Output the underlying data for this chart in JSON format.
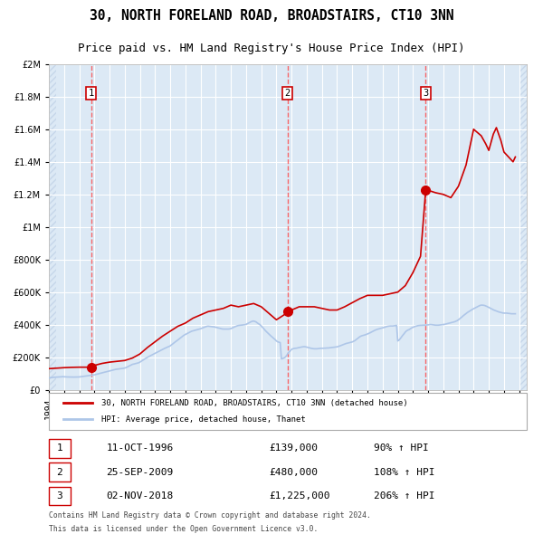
{
  "title1": "30, NORTH FORELAND ROAD, BROADSTAIRS, CT10 3NN",
  "title2": "Price paid vs. HM Land Registry's House Price Index (HPI)",
  "legend_line1": "30, NORTH FORELAND ROAD, BROADSTAIRS, CT10 3NN (detached house)",
  "legend_line2": "HPI: Average price, detached house, Thanet",
  "footer1": "Contains HM Land Registry data © Crown copyright and database right 2024.",
  "footer2": "This data is licensed under the Open Government Licence v3.0.",
  "transactions": [
    {
      "num": 1,
      "date": "11-OCT-1996",
      "year": 1996.78,
      "price": 139000,
      "hpi_pct": "90% ↑ HPI"
    },
    {
      "num": 2,
      "date": "25-SEP-2009",
      "year": 2009.73,
      "price": 480000,
      "hpi_pct": "108% ↑ HPI"
    },
    {
      "num": 3,
      "date": "02-NOV-2018",
      "year": 2018.84,
      "price": 1225000,
      "hpi_pct": "206% ↑ HPI"
    }
  ],
  "hpi_color": "#aec6e8",
  "price_color": "#cc0000",
  "dashed_color": "#ff4444",
  "bg_color": "#dce9f5",
  "plot_bg": "#dce9f5",
  "grid_color": "#ffffff",
  "hatch_color": "#c8d8ea",
  "ylim": [
    0,
    2000000
  ],
  "xlim_start": 1994.0,
  "xlim_end": 2025.5,
  "hpi_data": {
    "years": [
      1994.0,
      1994.08,
      1994.17,
      1994.25,
      1994.33,
      1994.42,
      1994.5,
      1994.58,
      1994.67,
      1994.75,
      1994.83,
      1994.92,
      1995.0,
      1995.08,
      1995.17,
      1995.25,
      1995.33,
      1995.42,
      1995.5,
      1995.58,
      1995.67,
      1995.75,
      1995.83,
      1995.92,
      1996.0,
      1996.08,
      1996.17,
      1996.25,
      1996.33,
      1996.42,
      1996.5,
      1996.58,
      1996.67,
      1996.75,
      1996.83,
      1996.92,
      1997.0,
      1997.08,
      1997.17,
      1997.25,
      1997.33,
      1997.42,
      1997.5,
      1997.58,
      1997.67,
      1997.75,
      1997.83,
      1997.92,
      1998.0,
      1998.08,
      1998.17,
      1998.25,
      1998.33,
      1998.42,
      1998.5,
      1998.58,
      1998.67,
      1998.75,
      1998.83,
      1998.92,
      1999.0,
      1999.08,
      1999.17,
      1999.25,
      1999.33,
      1999.42,
      1999.5,
      1999.58,
      1999.67,
      1999.75,
      1999.83,
      1999.92,
      2000.0,
      2000.08,
      2000.17,
      2000.25,
      2000.33,
      2000.42,
      2000.5,
      2000.58,
      2000.67,
      2000.75,
      2000.83,
      2000.92,
      2001.0,
      2001.08,
      2001.17,
      2001.25,
      2001.33,
      2001.42,
      2001.5,
      2001.58,
      2001.67,
      2001.75,
      2001.83,
      2001.92,
      2002.0,
      2002.08,
      2002.17,
      2002.25,
      2002.33,
      2002.42,
      2002.5,
      2002.58,
      2002.67,
      2002.75,
      2002.83,
      2002.92,
      2003.0,
      2003.08,
      2003.17,
      2003.25,
      2003.33,
      2003.42,
      2003.5,
      2003.58,
      2003.67,
      2003.75,
      2003.83,
      2003.92,
      2004.0,
      2004.08,
      2004.17,
      2004.25,
      2004.33,
      2004.42,
      2004.5,
      2004.58,
      2004.67,
      2004.75,
      2004.83,
      2004.92,
      2005.0,
      2005.08,
      2005.17,
      2005.25,
      2005.33,
      2005.42,
      2005.5,
      2005.58,
      2005.67,
      2005.75,
      2005.83,
      2005.92,
      2006.0,
      2006.08,
      2006.17,
      2006.25,
      2006.33,
      2006.42,
      2006.5,
      2006.58,
      2006.67,
      2006.75,
      2006.83,
      2006.92,
      2007.0,
      2007.08,
      2007.17,
      2007.25,
      2007.33,
      2007.42,
      2007.5,
      2007.58,
      2007.67,
      2007.75,
      2007.83,
      2007.92,
      2008.0,
      2008.08,
      2008.17,
      2008.25,
      2008.33,
      2008.42,
      2008.5,
      2008.58,
      2008.67,
      2008.75,
      2008.83,
      2008.92,
      2009.0,
      2009.08,
      2009.17,
      2009.25,
      2009.33,
      2009.42,
      2009.5,
      2009.58,
      2009.67,
      2009.75,
      2009.83,
      2009.92,
      2010.0,
      2010.08,
      2010.17,
      2010.25,
      2010.33,
      2010.42,
      2010.5,
      2010.58,
      2010.67,
      2010.75,
      2010.83,
      2010.92,
      2011.0,
      2011.08,
      2011.17,
      2011.25,
      2011.33,
      2011.42,
      2011.5,
      2011.58,
      2011.67,
      2011.75,
      2011.83,
      2011.92,
      2012.0,
      2012.08,
      2012.17,
      2012.25,
      2012.33,
      2012.42,
      2012.5,
      2012.58,
      2012.67,
      2012.75,
      2012.83,
      2012.92,
      2013.0,
      2013.08,
      2013.17,
      2013.25,
      2013.33,
      2013.42,
      2013.5,
      2013.58,
      2013.67,
      2013.75,
      2013.83,
      2013.92,
      2014.0,
      2014.08,
      2014.17,
      2014.25,
      2014.33,
      2014.42,
      2014.5,
      2014.58,
      2014.67,
      2014.75,
      2014.83,
      2014.92,
      2015.0,
      2015.08,
      2015.17,
      2015.25,
      2015.33,
      2015.42,
      2015.5,
      2015.58,
      2015.67,
      2015.75,
      2015.83,
      2015.92,
      2016.0,
      2016.08,
      2016.17,
      2016.25,
      2016.33,
      2016.42,
      2016.5,
      2016.58,
      2016.67,
      2016.75,
      2016.83,
      2016.92,
      2017.0,
      2017.08,
      2017.17,
      2017.25,
      2017.33,
      2017.42,
      2017.5,
      2017.58,
      2017.67,
      2017.75,
      2017.83,
      2017.92,
      2018.0,
      2018.08,
      2018.17,
      2018.25,
      2018.33,
      2018.42,
      2018.5,
      2018.58,
      2018.67,
      2018.75,
      2018.83,
      2018.92,
      2019.0,
      2019.08,
      2019.17,
      2019.25,
      2019.33,
      2019.42,
      2019.5,
      2019.58,
      2019.67,
      2019.75,
      2019.83,
      2019.92,
      2020.0,
      2020.08,
      2020.17,
      2020.25,
      2020.33,
      2020.42,
      2020.5,
      2020.58,
      2020.67,
      2020.75,
      2020.83,
      2020.92,
      2021.0,
      2021.08,
      2021.17,
      2021.25,
      2021.33,
      2021.42,
      2021.5,
      2021.58,
      2021.67,
      2021.75,
      2021.83,
      2021.92,
      2022.0,
      2022.08,
      2022.17,
      2022.25,
      2022.33,
      2022.42,
      2022.5,
      2022.58,
      2022.67,
      2022.75,
      2022.83,
      2022.92,
      2023.0,
      2023.08,
      2023.17,
      2023.25,
      2023.33,
      2023.42,
      2023.5,
      2023.58,
      2023.67,
      2023.75,
      2023.83,
      2023.92,
      2024.0,
      2024.08,
      2024.17,
      2024.25,
      2024.33,
      2024.42,
      2024.5,
      2024.58,
      2024.67,
      2024.75
    ],
    "values": [
      73000,
      74000,
      75000,
      76000,
      77000,
      77500,
      78000,
      78500,
      79000,
      79500,
      80000,
      80500,
      80000,
      79500,
      79000,
      78800,
      78600,
      78400,
      78200,
      78000,
      78200,
      78400,
      78600,
      78800,
      79000,
      80000,
      81000,
      82000,
      83000,
      84000,
      85000,
      86000,
      87000,
      88000,
      89000,
      90000,
      92000,
      94000,
      96000,
      98000,
      100000,
      102000,
      104000,
      106000,
      108000,
      110000,
      112000,
      114000,
      116000,
      118000,
      120000,
      122000,
      124000,
      126000,
      127000,
      128000,
      129000,
      130000,
      131000,
      132000,
      134000,
      136000,
      140000,
      144000,
      148000,
      152000,
      156000,
      158000,
      160000,
      162000,
      164000,
      166000,
      170000,
      175000,
      180000,
      185000,
      190000,
      195000,
      200000,
      204000,
      208000,
      212000,
      216000,
      220000,
      224000,
      228000,
      232000,
      236000,
      240000,
      244000,
      248000,
      252000,
      256000,
      260000,
      263000,
      266000,
      270000,
      276000,
      282000,
      288000,
      294000,
      300000,
      306000,
      312000,
      318000,
      324000,
      330000,
      336000,
      340000,
      344000,
      348000,
      352000,
      356000,
      360000,
      362000,
      364000,
      366000,
      368000,
      370000,
      372000,
      375000,
      378000,
      381000,
      384000,
      387000,
      390000,
      391000,
      390000,
      389000,
      388000,
      387000,
      386000,
      384000,
      382000,
      380000,
      378000,
      376000,
      374000,
      373000,
      373000,
      373000,
      373000,
      373000,
      374000,
      376000,
      379000,
      383000,
      387000,
      390000,
      393000,
      395000,
      396000,
      397000,
      398000,
      399000,
      400000,
      402000,
      406000,
      410000,
      414000,
      418000,
      421000,
      422000,
      420000,
      416000,
      410000,
      405000,
      400000,
      392000,
      384000,
      375000,
      366000,
      358000,
      350000,
      343000,
      335000,
      328000,
      322000,
      315000,
      308000,
      300000,
      295000,
      292000,
      290000,
      190000,
      192000,
      196000,
      200000,
      210000,
      222000,
      232000,
      240000,
      248000,
      252000,
      254000,
      255000,
      256000,
      258000,
      260000,
      262000,
      263000,
      264000,
      265000,
      264000,
      262000,
      260000,
      258000,
      256000,
      254000,
      253000,
      252000,
      252000,
      252000,
      253000,
      254000,
      255000,
      255000,
      255000,
      256000,
      256000,
      257000,
      257000,
      258000,
      259000,
      260000,
      261000,
      262000,
      263000,
      264000,
      266000,
      269000,
      272000,
      275000,
      278000,
      281000,
      284000,
      286000,
      288000,
      290000,
      292000,
      294000,
      298000,
      302000,
      308000,
      314000,
      320000,
      326000,
      330000,
      333000,
      335000,
      337000,
      340000,
      343000,
      346000,
      350000,
      354000,
      358000,
      362000,
      366000,
      369000,
      372000,
      374000,
      376000,
      378000,
      380000,
      382000,
      385000,
      388000,
      390000,
      391000,
      392000,
      392000,
      392000,
      393000,
      394000,
      396000,
      300000,
      305000,
      315000,
      325000,
      335000,
      345000,
      355000,
      362000,
      367000,
      370000,
      375000,
      380000,
      384000,
      387000,
      390000,
      392000,
      394000,
      395000,
      396000,
      396000,
      397000,
      397000,
      398000,
      398000,
      399000,
      400000,
      401000,
      400000,
      399000,
      398000,
      397000,
      397000,
      397000,
      398000,
      399000,
      400000,
      401000,
      402000,
      404000,
      406000,
      408000,
      410000,
      412000,
      414000,
      416000,
      418000,
      421000,
      425000,
      430000,
      436000,
      442000,
      449000,
      456000,
      462000,
      468000,
      474000,
      479000,
      484000,
      489000,
      494000,
      498000,
      502000,
      506000,
      510000,
      514000,
      518000,
      520000,
      520000,
      519000,
      517000,
      514000,
      510000,
      506000,
      502000,
      498000,
      494000,
      490000,
      487000,
      484000,
      481000,
      478000,
      476000,
      474000,
      472000,
      471000,
      471000,
      471000,
      470000,
      469000,
      468000,
      467000,
      467000,
      467000,
      467000
    ]
  },
  "price_data": {
    "years": [
      1994.0,
      1994.5,
      1995.0,
      1995.5,
      1996.0,
      1996.5,
      1996.78,
      1997.0,
      1997.5,
      1998.0,
      1998.5,
      1999.0,
      1999.5,
      2000.0,
      2000.5,
      2001.0,
      2001.5,
      2002.0,
      2002.5,
      2003.0,
      2003.5,
      2004.0,
      2004.5,
      2005.0,
      2005.5,
      2006.0,
      2006.5,
      2007.0,
      2007.5,
      2008.0,
      2008.5,
      2009.0,
      2009.5,
      2009.73,
      2010.0,
      2010.5,
      2011.0,
      2011.5,
      2012.0,
      2012.5,
      2013.0,
      2013.5,
      2014.0,
      2014.5,
      2015.0,
      2015.5,
      2016.0,
      2016.5,
      2017.0,
      2017.5,
      2018.0,
      2018.5,
      2018.84,
      2019.0,
      2019.5,
      2020.0,
      2020.5,
      2021.0,
      2021.5,
      2022.0,
      2022.5,
      2022.8,
      2023.0,
      2023.3,
      2023.5,
      2023.8,
      2024.0,
      2024.3,
      2024.6,
      2024.75
    ],
    "values": [
      130000,
      133000,
      136000,
      138000,
      139000,
      139000,
      139000,
      150000,
      162000,
      170000,
      175000,
      180000,
      195000,
      220000,
      260000,
      295000,
      330000,
      360000,
      390000,
      410000,
      440000,
      460000,
      480000,
      490000,
      500000,
      520000,
      510000,
      520000,
      530000,
      510000,
      470000,
      430000,
      460000,
      480000,
      490000,
      510000,
      510000,
      510000,
      500000,
      490000,
      490000,
      510000,
      535000,
      560000,
      580000,
      580000,
      580000,
      590000,
      600000,
      640000,
      720000,
      820000,
      1225000,
      1225000,
      1210000,
      1200000,
      1180000,
      1250000,
      1380000,
      1600000,
      1560000,
      1510000,
      1470000,
      1570000,
      1610000,
      1530000,
      1460000,
      1430000,
      1400000,
      1430000
    ]
  }
}
